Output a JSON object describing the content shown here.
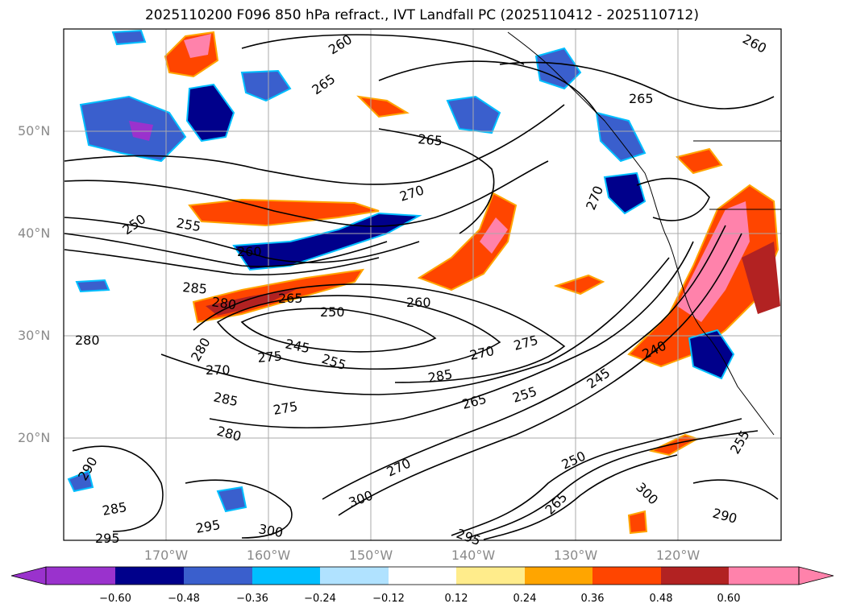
{
  "title": "2025110200 F096 850 hPa refract., IVT Landfall PC (2025110412 - 2025110712)",
  "map": {
    "lat_labels": [
      "50°N",
      "40°N",
      "30°N",
      "20°N"
    ],
    "lon_labels": [
      "170°W",
      "160°W",
      "150°W",
      "140°W",
      "130°W",
      "120°W"
    ],
    "contour_labels": [
      {
        "text": "260"
      },
      {
        "text": "265"
      },
      {
        "text": "260"
      },
      {
        "text": "265"
      },
      {
        "text": "265"
      },
      {
        "text": "270"
      },
      {
        "text": "270"
      },
      {
        "text": "255"
      },
      {
        "text": "250"
      },
      {
        "text": "260"
      },
      {
        "text": "285"
      },
      {
        "text": "280"
      },
      {
        "text": "265"
      },
      {
        "text": "250"
      },
      {
        "text": "260"
      },
      {
        "text": "245"
      },
      {
        "text": "275"
      },
      {
        "text": "255"
      },
      {
        "text": "270"
      },
      {
        "text": "275"
      },
      {
        "text": "280"
      },
      {
        "text": "280"
      },
      {
        "text": "270"
      },
      {
        "text": "285"
      },
      {
        "text": "285"
      },
      {
        "text": "265"
      },
      {
        "text": "255"
      },
      {
        "text": "245"
      },
      {
        "text": "240"
      },
      {
        "text": "275"
      },
      {
        "text": "280"
      },
      {
        "text": "250"
      },
      {
        "text": "255"
      },
      {
        "text": "290"
      },
      {
        "text": "285"
      },
      {
        "text": "295"
      },
      {
        "text": "295"
      },
      {
        "text": "300"
      },
      {
        "text": "300"
      },
      {
        "text": "270"
      },
      {
        "text": "295"
      },
      {
        "text": "265"
      },
      {
        "text": "300"
      },
      {
        "text": "290"
      }
    ]
  },
  "colorbar": {
    "tick_labels": [
      "−0.60",
      "−0.48",
      "−0.36",
      "−0.24",
      "−0.12",
      "0.12",
      "0.24",
      "0.36",
      "0.48",
      "0.60"
    ],
    "colors": [
      "#9a32cd",
      "#00008b",
      "#3a5fcd",
      "#00bfff",
      "#b0e2ff",
      "#ffffff",
      "#ffec8b",
      "#ffa500",
      "#ff4500",
      "#b22222",
      "#ff82ab"
    ]
  }
}
